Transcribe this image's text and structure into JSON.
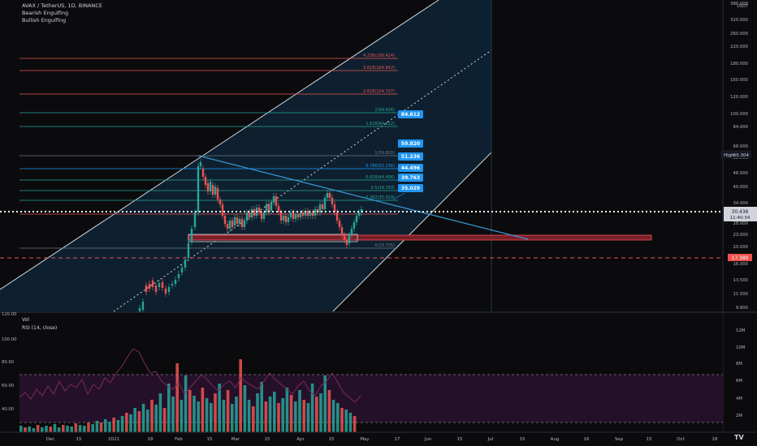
{
  "header": {
    "symbol_line": "AVAX / TetherUS, 1D, BINANCE",
    "indicators": [
      "Bearish Engulfing",
      "Bullish Engulfing"
    ]
  },
  "colors": {
    "background": "#0b0b0d",
    "up": "#26a69a",
    "down": "#ef5350",
    "channel": "#cfd8dc",
    "channel_fill": "#0e2233",
    "trendline": "#3a9ad9",
    "label_blue": "#2196f3",
    "fib_red": "#ef5350",
    "fib_green": "#26a69a",
    "rsi_band": "#2a1230",
    "rsi_line": "#7b2a5c"
  },
  "price_axis": {
    "unit": "USDT",
    "labels": [
      "380.000",
      "320.000",
      "260.000",
      "220.000",
      "180.000",
      "150.000",
      "120.000",
      "100.000",
      "84.000",
      "68.000",
      "58.000",
      "48.000",
      "40.000",
      "34.000",
      "28.000",
      "23.000",
      "20.000",
      "16.000",
      "13.500",
      "11.500",
      "9.800"
    ],
    "high_label": "High",
    "high_value": "60.304",
    "current_price": "30.436",
    "countdown": "11:40:34",
    "support_value": "17.389"
  },
  "fib_levels": [
    {
      "label": "4.236(189.424)"
    },
    {
      "label": "3.618(164.842)"
    },
    {
      "label": "2.618(124.727)"
    },
    {
      "label": "2(99.936)"
    },
    {
      "label": "1.618(84.612)"
    },
    {
      "label": "1(59.820)"
    },
    {
      "label": "0.786(51.236)"
    },
    {
      "label": "0.618(44.496)"
    },
    {
      "label": "0.5(39.763)"
    },
    {
      "label": "0.382(35.029)"
    },
    {
      "label": "0(19.705)"
    }
  ],
  "callouts": [
    "84.612",
    "59.820",
    "51.236",
    "44.496",
    "39.763",
    "35.029"
  ],
  "time_axis": {
    "labels": [
      "Dec",
      "15",
      "2021",
      "18",
      "Feb",
      "15",
      "Mar",
      "15",
      "Apr",
      "15",
      "May",
      "17",
      "Jun",
      "15",
      "Jul",
      "15",
      "Aug",
      "16",
      "Sep",
      "15",
      "Oct",
      "18"
    ]
  },
  "lower_pane": {
    "vol_label": "Vol",
    "rsi_label": "RSI (14, close)",
    "rsi_axis": [
      "120.00",
      "100.00",
      "80.00",
      "60.00",
      "40.00"
    ],
    "vol_axis": [
      "12M",
      "10M",
      "8M",
      "6M",
      "4M",
      "2M"
    ]
  },
  "logo": "TV"
}
